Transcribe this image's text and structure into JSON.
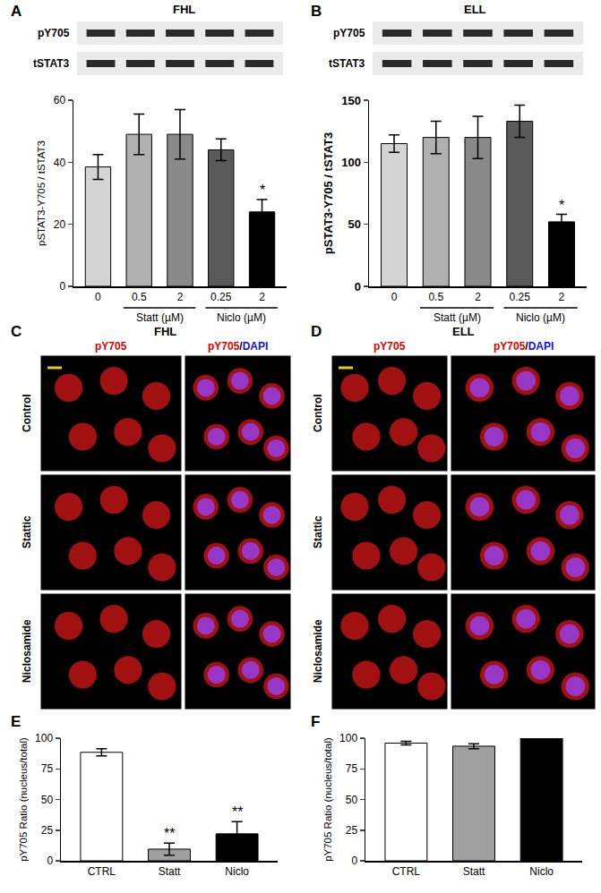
{
  "chart_data": [
    {
      "type": "bar",
      "panel": "A",
      "title": "FHL",
      "blot_rows": [
        "pY705",
        "tSTAT3"
      ],
      "categories": [
        "0",
        "0.5",
        "2",
        "0.25",
        "2"
      ],
      "groups": [
        {
          "label": "Statt (µM)",
          "span": [
            1,
            2
          ]
        },
        {
          "label": "Niclo (µM)",
          "span": [
            3,
            4
          ]
        }
      ],
      "values": [
        38.5,
        49,
        49,
        44,
        24
      ],
      "errors": [
        4,
        6.5,
        8,
        3.5,
        4
      ],
      "colors": [
        "#d4d4d4",
        "#b0b0b0",
        "#8a8a8a",
        "#5a5a5a",
        "#000000"
      ],
      "significance": [
        null,
        null,
        null,
        null,
        "*"
      ],
      "ylabel": "pSTAT3-Y705 / tSTAT3",
      "ylim": [
        0,
        60
      ],
      "yticks": [
        0,
        20,
        40,
        60
      ]
    },
    {
      "type": "bar",
      "panel": "B",
      "title": "ELL",
      "blot_rows": [
        "pY705",
        "tSTAT3"
      ],
      "categories": [
        "0",
        "0.5",
        "2",
        "0.25",
        "2"
      ],
      "groups": [
        {
          "label": "Statt (µM)",
          "span": [
            1,
            2
          ]
        },
        {
          "label": "Niclo (µM)",
          "span": [
            3,
            4
          ]
        }
      ],
      "values": [
        115,
        120,
        120,
        133,
        52
      ],
      "errors": [
        7,
        13,
        17,
        13,
        6
      ],
      "colors": [
        "#d4d4d4",
        "#b0b0b0",
        "#8a8a8a",
        "#5a5a5a",
        "#000000"
      ],
      "significance": [
        null,
        null,
        null,
        null,
        "*"
      ],
      "ylabel": "pSTAT3-Y705 / tSTAT3",
      "ylim": [
        0,
        150
      ],
      "yticks": [
        0,
        50,
        100,
        150
      ]
    },
    {
      "type": "bar",
      "panel": "E",
      "categories": [
        "CTRL",
        "Statt",
        "Niclo"
      ],
      "values": [
        88.5,
        9.5,
        22
      ],
      "errors": [
        3,
        5,
        10
      ],
      "colors": [
        "#ffffff",
        "#a0a0a0",
        "#000000"
      ],
      "significance": [
        null,
        "**",
        "**"
      ],
      "ylabel": "pY705 Ratio (nucleus/total)",
      "ylim": [
        0,
        100
      ],
      "yticks": [
        0,
        25,
        50,
        75,
        100
      ]
    },
    {
      "type": "bar",
      "panel": "F",
      "categories": [
        "CTRL",
        "Statt",
        "Niclo"
      ],
      "values": [
        96,
        93.5,
        100
      ],
      "errors": [
        1.5,
        2,
        0
      ],
      "colors": [
        "#ffffff",
        "#a0a0a0",
        "#000000"
      ],
      "significance": [
        null,
        null,
        null
      ],
      "ylabel": "pY705 Ratio (nucleus/total)",
      "ylim": [
        0,
        100
      ],
      "yticks": [
        0,
        25,
        50,
        75,
        100
      ]
    }
  ],
  "micrographs": [
    {
      "panel": "C",
      "title": "FHL",
      "columns": [
        [
          {
            "text": "pY705",
            "color": "#e00000"
          }
        ],
        [
          {
            "text": "pY705",
            "color": "#e00000"
          },
          {
            "text": "/",
            "color": "#000000"
          },
          {
            "text": "DAPI",
            "color": "#1010e0"
          }
        ]
      ],
      "rows": [
        "Control",
        "Stattic",
        "Niclosamide"
      ]
    },
    {
      "panel": "D",
      "title": "ELL",
      "columns": [
        [
          {
            "text": "pY705",
            "color": "#e00000"
          }
        ],
        [
          {
            "text": "pY705",
            "color": "#e00000"
          },
          {
            "text": "/",
            "color": "#000000"
          },
          {
            "text": "DAPI",
            "color": "#1010e0"
          }
        ]
      ],
      "rows": [
        "Control",
        "Stattic",
        "Niclosamide"
      ]
    }
  ]
}
